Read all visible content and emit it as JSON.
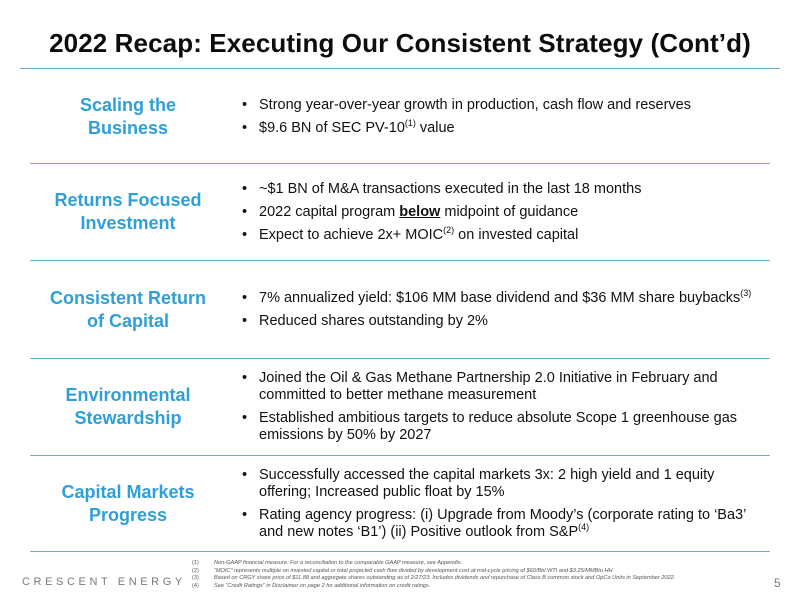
{
  "title": "2022 Recap: Executing Our Consistent Strategy (Cont’d)",
  "rows": [
    {
      "label": [
        "Scaling the",
        "Business"
      ],
      "bullets": [
        {
          "parts": [
            {
              "t": "Strong year-over-year growth in production, cash flow and reserves"
            }
          ]
        },
        {
          "parts": [
            {
              "t": "$9.6 BN of SEC PV-10"
            },
            {
              "sup": "(1)"
            },
            {
              "t": " value"
            }
          ]
        }
      ]
    },
    {
      "label": [
        "Returns Focused",
        "Investment"
      ],
      "bullets": [
        {
          "parts": [
            {
              "t": "~$1 BN of M&A transactions executed in the last 18 months"
            }
          ]
        },
        {
          "parts": [
            {
              "t": "2022 capital program "
            },
            {
              "bu": "below"
            },
            {
              "t": " midpoint of guidance"
            }
          ]
        },
        {
          "parts": [
            {
              "t": "Expect to achieve 2x+ MOIC"
            },
            {
              "sup": "(2)"
            },
            {
              "t": " on invested capital"
            }
          ]
        }
      ]
    },
    {
      "label": [
        "Consistent Return",
        "of Capital"
      ],
      "bullets": [
        {
          "parts": [
            {
              "t": "7% annualized yield: $106 MM base dividend and $36 MM share buybacks"
            },
            {
              "sup": "(3)"
            }
          ]
        },
        {
          "parts": [
            {
              "t": "Reduced shares outstanding by 2%"
            }
          ]
        }
      ]
    },
    {
      "label": [
        "Environmental",
        "Stewardship"
      ],
      "bullets": [
        {
          "parts": [
            {
              "t": "Joined the Oil & Gas Methane Partnership 2.0 Initiative in February and committed to better methane measurement"
            }
          ]
        },
        {
          "parts": [
            {
              "t": "Established ambitious targets to reduce absolute Scope 1 greenhouse gas emissions by 50% by 2027"
            }
          ]
        }
      ]
    },
    {
      "label": [
        "Capital Markets",
        "Progress"
      ],
      "bullets": [
        {
          "parts": [
            {
              "t": "Successfully accessed the capital markets 3x: 2 high yield and 1 equity offering; Increased public float by 15%"
            }
          ]
        },
        {
          "parts": [
            {
              "t": "Rating agency progress: (i) Upgrade from Moody’s (corporate rating to ‘Ba3’ and new notes ‘B1’) (ii) Positive outlook from S&P"
            },
            {
              "sup": "(4)"
            }
          ]
        }
      ]
    }
  ],
  "footnotes": [
    {
      "n": "(1)",
      "text": "Non-GAAP financial measure. For a reconciliation to the comparable GAAP measure, see Appendix."
    },
    {
      "n": "(2)",
      "text": "“MOIC” represents multiple on invested capital or total projected cash flow divided by development cost at mid-cycle pricing of $60/Bbl WTI and $3.25/MMBtu HH."
    },
    {
      "n": "(3)",
      "text": "Based on CRGY share price of $11.88 and aggregate shares outstanding as of 2/27/23. Includes dividends and repurchase of Class B common stock and OpCo Units in September 2022."
    },
    {
      "n": "(4)",
      "text": "See “Credit Ratings” in Disclaimer on page 2 for additional information on credit ratings."
    }
  ],
  "brand": "CRESCENT ENERGY",
  "page_number": "5",
  "colors": {
    "accent": "#2e9fd8",
    "rule": "#6aaed6"
  }
}
